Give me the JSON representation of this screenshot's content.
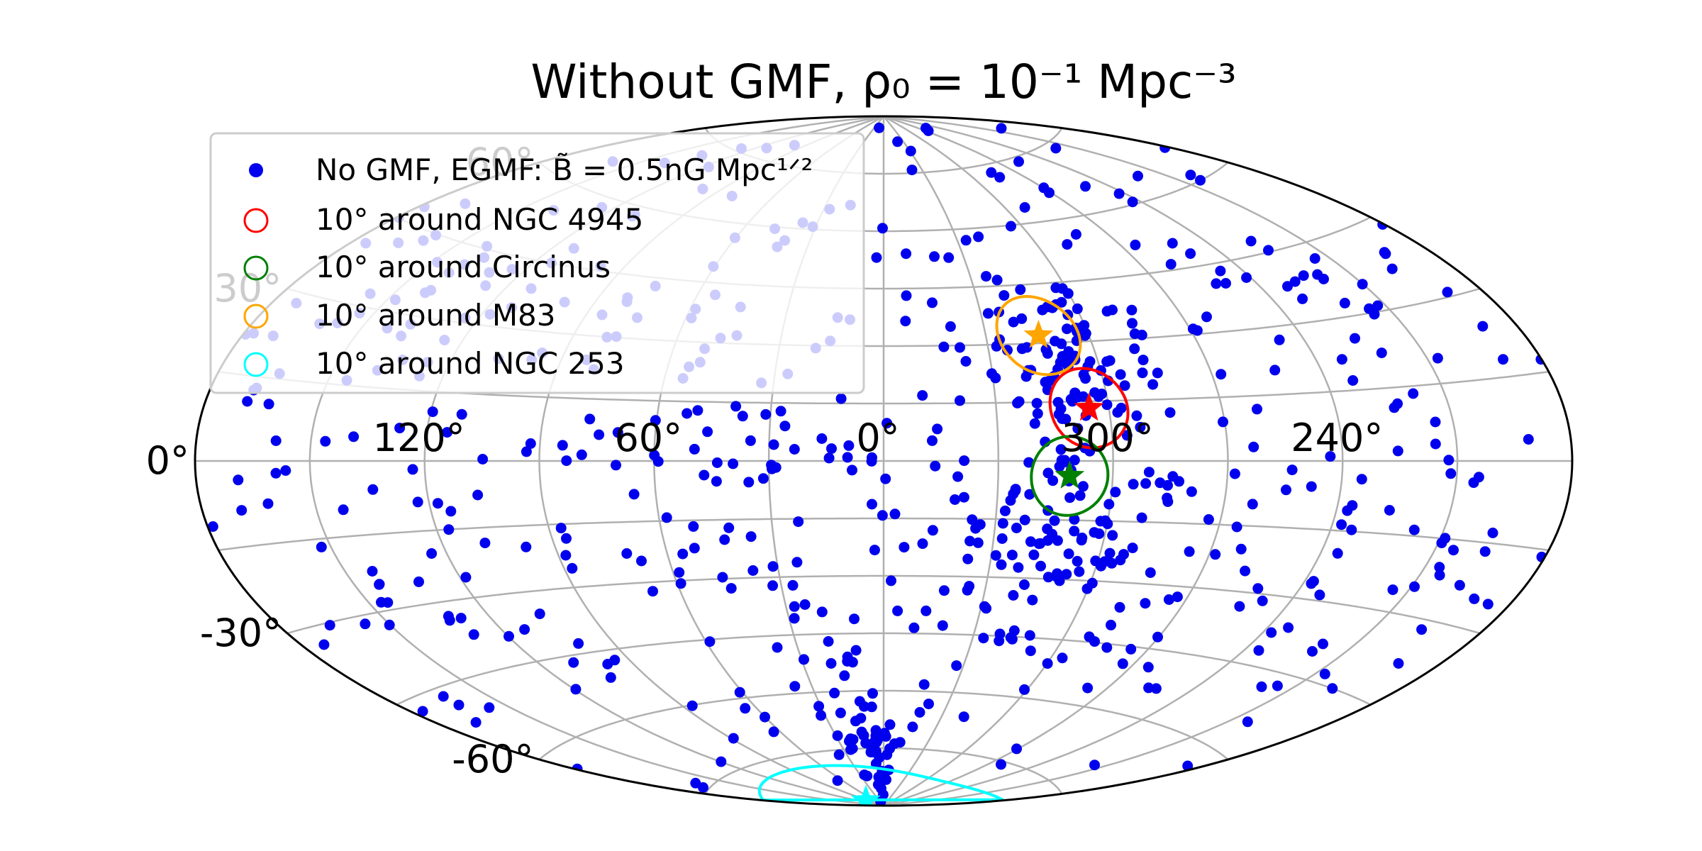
{
  "chart_data": {
    "type": "scatter",
    "projection": "aitoff",
    "title": "Without GMF, ρ₀ = 10⁻¹ Mpc⁻³",
    "grid": true,
    "legend_position": "top-left",
    "colors": {
      "points": "#0000ee",
      "ngc4945": "#ff0000",
      "circinus": "#008000",
      "m83": "#ffa500",
      "ngc253": "#00ffff",
      "grid": "#b0b0b0"
    },
    "lon_ticks": [
      {
        "label": "120°",
        "lon": 120
      },
      {
        "label": "60°",
        "lon": 60
      },
      {
        "label": "0°",
        "lon": 0
      },
      {
        "label": "300°",
        "lon": 300
      },
      {
        "label": "240°",
        "lon": 240
      }
    ],
    "lat_ticks": [
      {
        "label": "60°",
        "lat": 60
      },
      {
        "label": "30°",
        "lat": 30
      },
      {
        "label": "0°",
        "lat": 0
      },
      {
        "label": "-30°",
        "lat": -30
      },
      {
        "label": "-60°",
        "lat": -60
      }
    ],
    "series": [
      {
        "name": "No GMF, EGMF: B̃ = 0.5nG Mpc¹ᐟ²",
        "count": 700,
        "seed": 20231,
        "overdensities": [
          {
            "lon": 305,
            "lat": 25,
            "spread": 12,
            "weight": 0.13
          },
          {
            "lon": 310,
            "lat": -18,
            "spread": 13,
            "weight": 0.08
          },
          {
            "lon": 10,
            "lat": -72,
            "spread": 10,
            "weight": 0.06
          }
        ]
      }
    ],
    "sources": [
      {
        "key": "ngc4945",
        "label": "10° around NGC 4945",
        "lon": 305.3,
        "lat": 13.3,
        "radius": 10
      },
      {
        "key": "circinus",
        "label": "10° around Circinus",
        "lon": 311.3,
        "lat": -3.8,
        "radius": 10
      },
      {
        "key": "m83",
        "label": "10° around M83",
        "lon": 314.6,
        "lat": 32.0,
        "radius": 10
      },
      {
        "key": "ngc253",
        "label": "10° around NGC 253",
        "lon": 97.4,
        "lat": -88.0,
        "radius": 10
      }
    ]
  }
}
